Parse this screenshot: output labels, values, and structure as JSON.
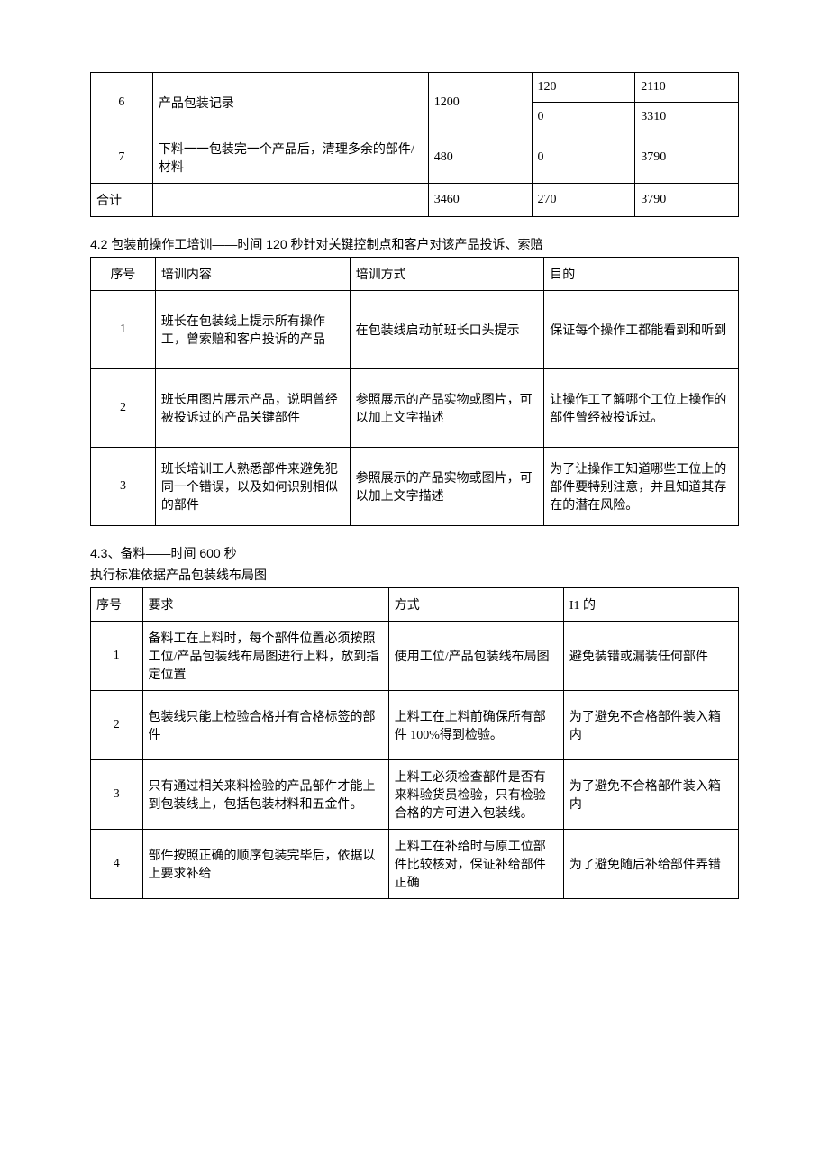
{
  "table1": {
    "rows": [
      {
        "num": "6",
        "desc": "产品包装记录",
        "c3": "1200",
        "c4a": "120",
        "c5a": "2110",
        "c4b": "0",
        "c5b": "3310"
      },
      {
        "num": "7",
        "desc": "下料一一包装完一个产品后，清理多余的部件/材料",
        "c3": "480",
        "c4a": "",
        "c5a": "",
        "c4b": "0",
        "c5b": "3790"
      },
      {
        "num": "合计",
        "desc": "",
        "c3": "3460",
        "c4a": "270",
        "c5a": "3790"
      }
    ]
  },
  "section42": {
    "heading": "4.2 包装前操作工培训——时间 120 秒针对关键控制点和客户对该产品投诉、索赔",
    "headers": [
      "序号",
      "培训内容",
      "培训方式",
      "目的"
    ],
    "rows": [
      {
        "num": "1",
        "content": "班长在包装线上提示所有操作工，曾索赔和客户投诉的产品",
        "method": "在包装线启动前班长口头提示",
        "purpose": "保证每个操作工都能看到和听到"
      },
      {
        "num": "2",
        "content": "班长用图片展示产品，说明曾经被投诉过的产品关键部件",
        "method": "参照展示的产品实物或图片，可以加上文字描述",
        "purpose": "让操作工了解哪个工位上操作的部件曾经被投诉过。"
      },
      {
        "num": "3",
        "content": "班长培训工人熟悉部件来避免犯同一个错误，以及如何识别相似的部件",
        "method": "参照展示的产品实物或图片，可以加上文字描述",
        "purpose": "为了让操作工知道哪些工位上的部件要特别注意，并且知道其存在的潜在风险。"
      }
    ]
  },
  "section43": {
    "heading": "4.3、备料——时间 600 秒",
    "subheading": "执行标准依据产品包装线布局图",
    "headers": [
      "序号",
      "要求",
      "方式",
      "I1 的"
    ],
    "rows": [
      {
        "num": "1",
        "req": "备料工在上料时，每个部件位置必须按照工位/产品包装线布局图进行上料，放到指定位置",
        "method": "使用工位/产品包装线布局图",
        "purpose": "避免装错或漏装任何部件"
      },
      {
        "num": "2",
        "req": "包装线只能上检验合格并有合格标签的部件",
        "method": "上料工在上料前确保所有部件 100%得到检验。",
        "purpose": "为了避免不合格部件装入箱内"
      },
      {
        "num": "3",
        "req": "只有通过相关来料检验的产品部件才能上到包装线上，包括包装材料和五金件。",
        "method": "上料工必须检查部件是否有来料验货员检验，只有检验合格的方可进入包装线。",
        "purpose": "为了避免不合格部件装入箱内"
      },
      {
        "num": "4",
        "req": "部件按照正确的顺序包装完毕后，依据以上要求补给",
        "method": "上料工在补给时与原工位部件比较核对，保证补给部件正确",
        "purpose": "为了避免随后补给部件弄错"
      }
    ]
  }
}
